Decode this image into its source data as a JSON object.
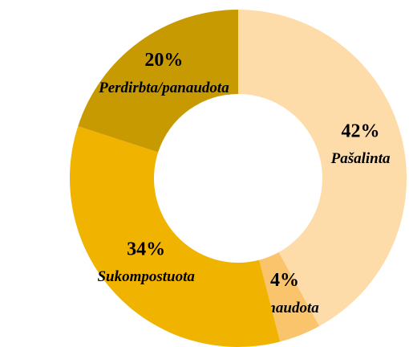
{
  "chart_data": {
    "type": "donut",
    "categories": [
      "Pašalinta",
      "Panaudota",
      "Sukompostuota",
      "Perdirbta/panaudota"
    ],
    "values": [
      42,
      4,
      34,
      20
    ],
    "value_labels": [
      "42%",
      "4%",
      "34%",
      "20%"
    ],
    "colors": [
      "#FDDCAA",
      "#FAC46C",
      "#F0B300",
      "#C79A02"
    ]
  }
}
